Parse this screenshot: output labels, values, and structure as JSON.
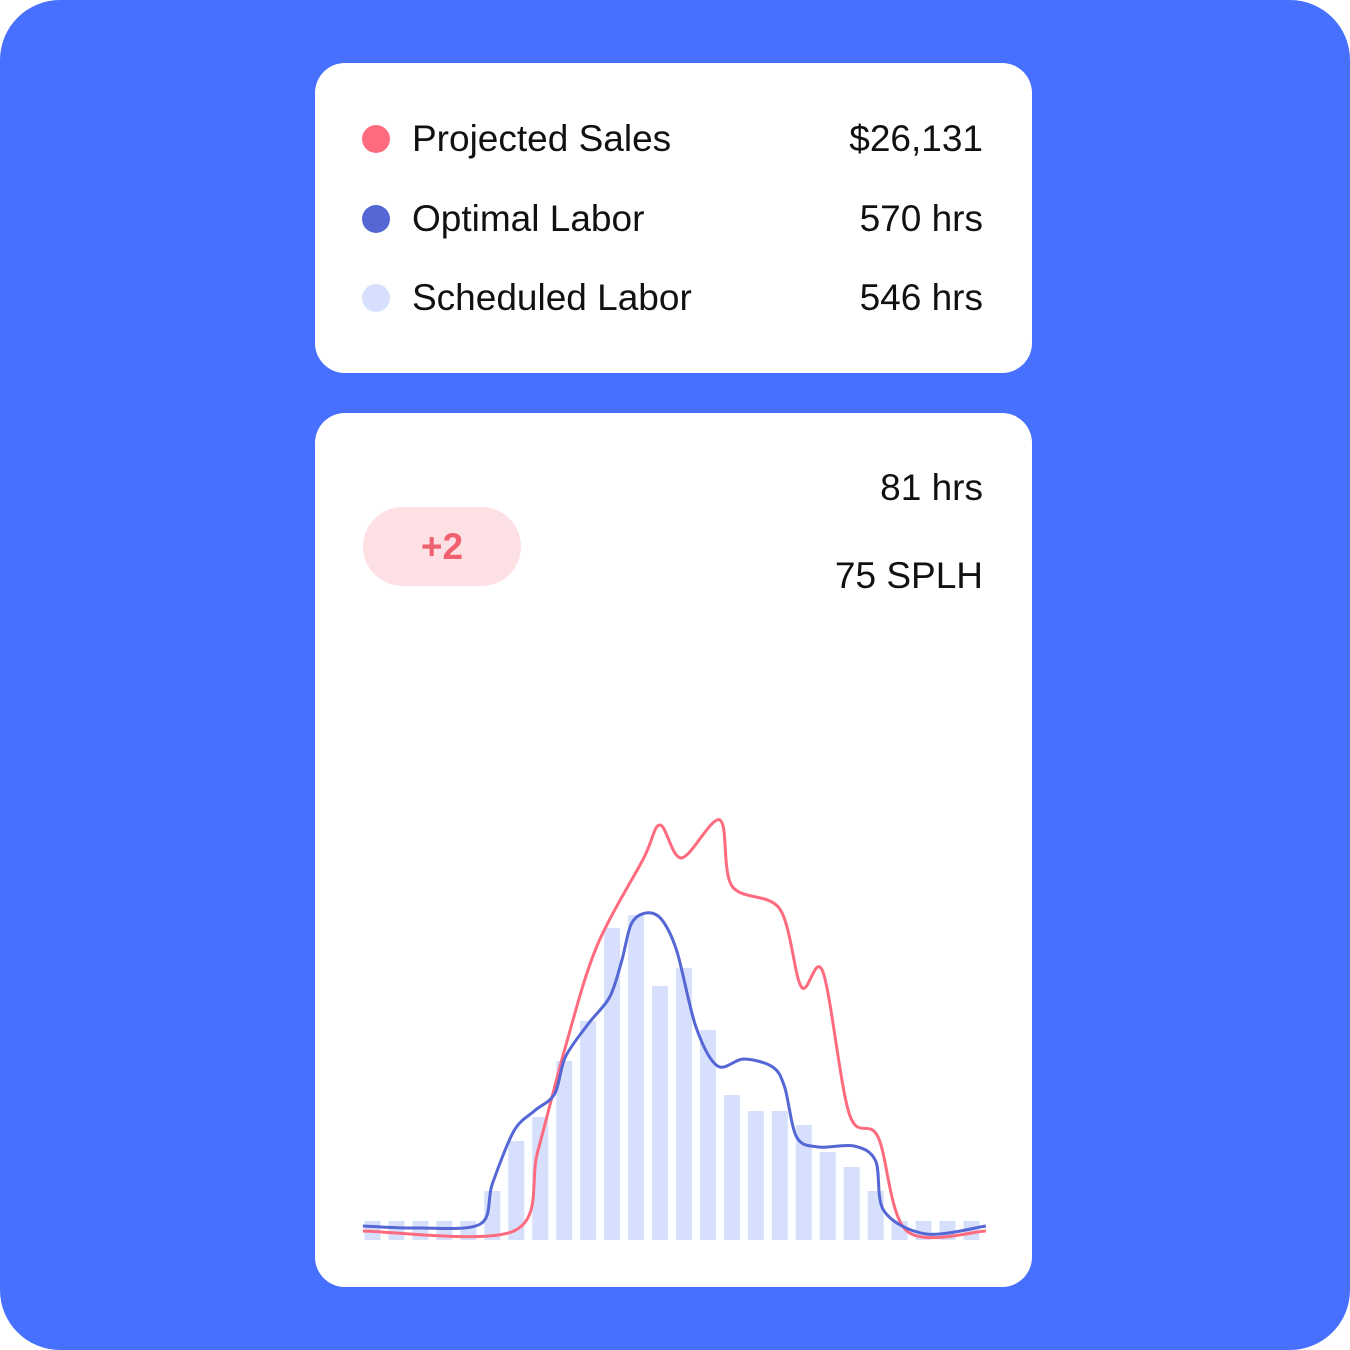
{
  "legend": [
    {
      "label": "Projected Sales",
      "value": "$26,131",
      "color": "#ff6b7e"
    },
    {
      "label": "Optimal Labor",
      "value": "570 hrs",
      "color": "#5467d4"
    },
    {
      "label": "Scheduled Labor",
      "value": "546 hrs",
      "color": "#d6e0fd"
    }
  ],
  "stats": {
    "hours": "81 hrs",
    "splh": "75 SPLH",
    "badge": "+2"
  },
  "colors": {
    "background": "#4870ff",
    "badge_bg": "#fde0e4",
    "badge_text": "#f0606f"
  },
  "chart_data": {
    "type": "bar+line",
    "grid": false,
    "series": [
      {
        "name": "Scheduled Labor",
        "type": "bar",
        "color": "#d6e0fd",
        "values": [
          19,
          19,
          19,
          19,
          19,
          49,
          99,
          123,
          179,
          219,
          312,
          325,
          254,
          272,
          210,
          145,
          129,
          129,
          115,
          88,
          73,
          49,
          19,
          19,
          19,
          19
        ]
      },
      {
        "name": "Projected Sales",
        "type": "line",
        "color": "#ff6b7e",
        "points": [
          [
            -0.4,
            9
          ],
          [
            5.9,
            9
          ],
          [
            6.9,
            89
          ],
          [
            8.05,
            193
          ],
          [
            9.35,
            293
          ],
          [
            11.3,
            381
          ],
          [
            12,
            415
          ],
          [
            12.9,
            382
          ],
          [
            14.5,
            420
          ],
          [
            15,
            354
          ],
          [
            17,
            331
          ],
          [
            17.9,
            253
          ],
          [
            18.8,
            268
          ],
          [
            19.9,
            126
          ],
          [
            21.1,
            103
          ],
          [
            22.3,
            9
          ],
          [
            25.6,
            9
          ]
        ]
      },
      {
        "name": "Optimal Labor",
        "type": "line",
        "color": "#5467d4",
        "points": [
          [
            -0.4,
            14
          ],
          [
            1.9,
            12
          ],
          [
            4.5,
            16
          ],
          [
            5,
            56
          ],
          [
            5.9,
            109
          ],
          [
            6.75,
            129
          ],
          [
            7.6,
            146
          ],
          [
            8.05,
            183
          ],
          [
            9,
            216
          ],
          [
            9.9,
            243
          ],
          [
            10.4,
            279
          ],
          [
            10.8,
            316
          ],
          [
            11.4,
            327
          ],
          [
            12.05,
            321
          ],
          [
            12.7,
            289
          ],
          [
            13.5,
            213
          ],
          [
            14.4,
            174
          ],
          [
            15.5,
            181
          ],
          [
            16.7,
            173
          ],
          [
            17.2,
            153
          ],
          [
            17.7,
            103
          ],
          [
            18.6,
            93
          ],
          [
            20.1,
            94
          ],
          [
            21,
            79
          ],
          [
            21.35,
            29
          ],
          [
            23.1,
            6
          ],
          [
            25.6,
            14
          ]
        ]
      }
    ]
  }
}
